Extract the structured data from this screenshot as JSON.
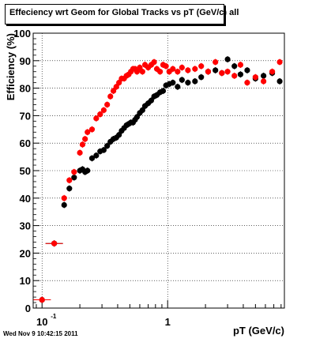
{
  "chart_data": {
    "type": "scatter",
    "title": "Effeciency wrt Geom for Global Tracks vs pT (GeV/c) all",
    "xlabel": "pT (GeV/c)",
    "ylabel": "Efficiency (%)",
    "xscale": "log",
    "xlim": [
      0.085,
      8.5
    ],
    "ylim": [
      0,
      100
    ],
    "grid": true,
    "yticks": [
      0,
      10,
      20,
      30,
      40,
      50,
      60,
      70,
      80,
      90,
      100
    ],
    "ytick_labels": [
      "0",
      "10",
      "20",
      "30",
      "40",
      "50",
      "60",
      "70",
      "80",
      "90",
      "100"
    ],
    "xtick_labels": [
      {
        "x": 0.1,
        "base": "10",
        "exp": "-1"
      },
      {
        "x": 1,
        "base": "1",
        "exp": ""
      }
    ],
    "series": [
      {
        "color": "#000000",
        "x": [
          0.1,
          0.125,
          0.15,
          0.165,
          0.18,
          0.2,
          0.21,
          0.22,
          0.23,
          0.25,
          0.27,
          0.29,
          0.31,
          0.33,
          0.35,
          0.37,
          0.39,
          0.41,
          0.43,
          0.45,
          0.47,
          0.49,
          0.51,
          0.53,
          0.55,
          0.57,
          0.6,
          0.63,
          0.66,
          0.7,
          0.74,
          0.78,
          0.82,
          0.87,
          0.92,
          0.97,
          1.03,
          1.1,
          1.2,
          1.3,
          1.45,
          1.65,
          1.85,
          2.1,
          2.4,
          2.7,
          3.0,
          3.4,
          3.8,
          4.3,
          5.0,
          5.8,
          6.8,
          7.8
        ],
        "y": [
          3,
          23.5,
          37.5,
          43.5,
          47.5,
          50,
          50.5,
          49.5,
          50,
          54.5,
          55.5,
          57,
          57.5,
          59,
          60.5,
          61.5,
          62,
          63,
          64.5,
          65.5,
          66.5,
          67,
          67.5,
          67.5,
          68.5,
          69.5,
          71,
          72,
          73.5,
          74.5,
          75.5,
          77,
          77.5,
          78.5,
          79,
          81,
          81.5,
          82,
          80.5,
          83,
          82,
          82.5,
          84,
          86,
          86.5,
          85.5,
          90.5,
          88,
          85,
          86.5,
          83.5,
          84.5,
          85.5,
          82.5
        ]
      },
      {
        "color": "#ff0000",
        "x": [
          0.1,
          0.125,
          0.15,
          0.165,
          0.18,
          0.2,
          0.21,
          0.22,
          0.23,
          0.25,
          0.27,
          0.29,
          0.31,
          0.33,
          0.35,
          0.37,
          0.39,
          0.41,
          0.43,
          0.45,
          0.47,
          0.49,
          0.51,
          0.53,
          0.55,
          0.57,
          0.6,
          0.63,
          0.66,
          0.7,
          0.74,
          0.78,
          0.82,
          0.87,
          0.92,
          0.97,
          1.03,
          1.1,
          1.2,
          1.3,
          1.45,
          1.65,
          1.85,
          2.1,
          2.4,
          2.7,
          3.0,
          3.4,
          3.8,
          4.3,
          5.0,
          5.8,
          6.8,
          7.8
        ],
        "y": [
          3,
          23.5,
          40,
          46.5,
          49.5,
          56.5,
          59.5,
          61.5,
          64,
          65,
          69,
          70.5,
          72,
          74,
          77,
          79,
          80.5,
          82,
          83.5,
          83.5,
          84.5,
          85,
          86,
          87,
          87,
          86,
          87.5,
          86,
          88.5,
          87.5,
          88.5,
          89.5,
          87,
          86,
          88.5,
          88,
          86,
          87,
          86,
          87.5,
          86.5,
          87,
          88,
          86,
          89.5,
          85.5,
          86,
          84.5,
          88.5,
          82,
          84,
          82.5,
          86,
          89.5
        ]
      }
    ]
  },
  "footer": {
    "date": "Wed Nov  9 10:42:15 2011"
  }
}
